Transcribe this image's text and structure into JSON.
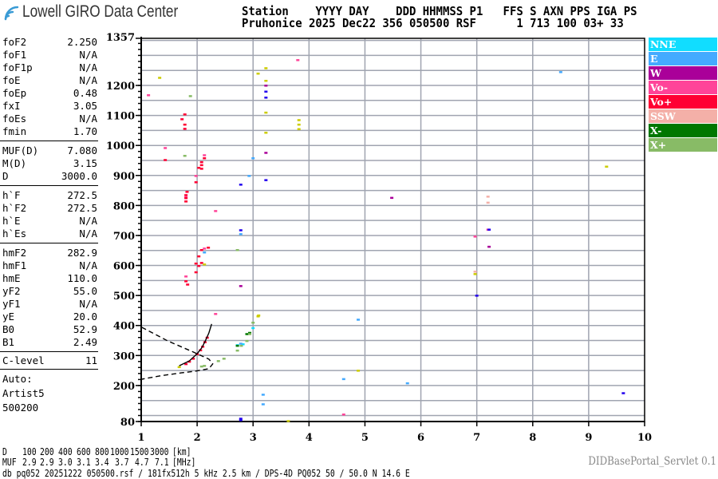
{
  "header": {
    "logo_text": "Lowell GIRO Data Center",
    "line1": "Station    YYYY DAY    DDD HHMMSS P1   FFS S AXN PPS IGA PS",
    "line2": "Pruhonice 2025 Dec22 356 050500 RSF      1 713 100 03+ 33"
  },
  "params": [
    {
      "key": "foF2",
      "value": "2.250"
    },
    {
      "key": "foF1",
      "value": "N/A"
    },
    {
      "key": "foF1p",
      "value": "N/A"
    },
    {
      "key": "foE",
      "value": "N/A"
    },
    {
      "key": "foEp",
      "value": "0.48"
    },
    {
      "key": "fxI",
      "value": "3.05"
    },
    {
      "key": "foEs",
      "value": "N/A"
    },
    {
      "key": "fmin",
      "value": "1.70"
    },
    {
      "key": "MUF(D)",
      "value": "7.080"
    },
    {
      "key": "M(D)",
      "value": "3.15"
    },
    {
      "key": "D",
      "value": "3000.0"
    },
    {
      "key": "h`F",
      "value": "272.5"
    },
    {
      "key": "h`F2",
      "value": "272.5"
    },
    {
      "key": "h`E",
      "value": "N/A"
    },
    {
      "key": "h`Es",
      "value": "N/A"
    },
    {
      "key": "hmF2",
      "value": "282.9"
    },
    {
      "key": "hmF1",
      "value": "N/A"
    },
    {
      "key": "hmE",
      "value": "110.0"
    },
    {
      "key": "yF2",
      "value": "55.0"
    },
    {
      "key": "yF1",
      "value": "N/A"
    },
    {
      "key": "yE",
      "value": "20.0"
    },
    {
      "key": "B0",
      "value": "52.9"
    },
    {
      "key": "B1",
      "value": "2.49"
    },
    {
      "key": "C-level",
      "value": "11"
    }
  ],
  "autoscaling": {
    "line1": "Auto:",
    "line2": "Artist5",
    "line3": "500200"
  },
  "legend": [
    {
      "label": "NNE",
      "color": "#11ddff"
    },
    {
      "label": "E",
      "color": "#44aaff"
    },
    {
      "label": "W",
      "color": "#aa0099"
    },
    {
      "label": "Vo-",
      "color": "#ff4499"
    },
    {
      "label": "Vo+",
      "color": "#ff0033"
    },
    {
      "label": "SSW",
      "color": "#f4b0a8"
    },
    {
      "label": "X-",
      "color": "#007700"
    },
    {
      "label": "X+",
      "color": "#88bb66"
    }
  ],
  "muf_table": {
    "d_label": "D",
    "d_values": [
      "100",
      "200",
      "400",
      "600",
      "800",
      "1000",
      "1500",
      "3000"
    ],
    "d_unit": "[km]",
    "muf_label": "MUF",
    "muf_values": [
      "2.9",
      "2.9",
      "3.0",
      "3.1",
      "3.4",
      "3.7",
      "4.7",
      "7.1"
    ],
    "muf_unit": "[MHz]"
  },
  "footer": "db pq052 20251222 050500.rsf / 181fx512h 5 kHz 2.5 km / DPS-4D PQ052 50 / 50.0 N 14.6 E",
  "servlet": "DIDBasePortal_Servlet 0.1",
  "chart_data": {
    "type": "scatter",
    "xlim": [
      1,
      10
    ],
    "ylim": [
      80,
      1357
    ],
    "x_ticks": [
      "1",
      "2",
      "3",
      "4",
      "5",
      "6",
      "7",
      "8",
      "9",
      "10"
    ],
    "y_ticks": [
      "1357",
      "1200",
      "1100",
      "1000",
      "900",
      "800",
      "700",
      "600",
      "500",
      "400",
      "300",
      "200",
      "80"
    ],
    "grid": true,
    "legend_position": "right",
    "series": [
      {
        "name": "NNE",
        "color": "#11ddff",
        "points": [
          [
            3.0,
            392
          ],
          [
            2.72,
            335
          ],
          [
            2.82,
            338
          ]
        ]
      },
      {
        "name": "E",
        "color": "#44aaff",
        "points": [
          [
            3.0,
            958
          ],
          [
            2.93,
            899
          ],
          [
            2.78,
            705
          ],
          [
            2.13,
            644
          ],
          [
            3.18,
            170
          ],
          [
            3.18,
            138
          ],
          [
            4.88,
            420
          ],
          [
            4.62,
            222
          ],
          [
            5.76,
            208
          ],
          [
            8.5,
            1245
          ],
          [
            2.78,
            340
          ]
        ]
      },
      {
        "name": "W",
        "color": "#aa0099",
        "points": [
          [
            3.23,
            976
          ],
          [
            2.78,
            532
          ],
          [
            5.48,
            826
          ],
          [
            7.22,
            663
          ],
          [
            3.23,
            1200
          ]
        ]
      },
      {
        "name": "Vo-",
        "color": "#ff4499",
        "points": [
          [
            1.43,
            992
          ],
          [
            2.13,
            968
          ],
          [
            1.98,
            899
          ],
          [
            1.8,
            828
          ],
          [
            2.33,
            782
          ],
          [
            2.13,
            657
          ],
          [
            1.8,
            564
          ],
          [
            2.33,
            439
          ],
          [
            1.13,
            1168
          ],
          [
            3.8,
            1285
          ],
          [
            6.97,
            697
          ],
          [
            7.2,
            720
          ],
          [
            4.62,
            104
          ]
        ]
      },
      {
        "name": "Vo+",
        "color": "#ff0033",
        "points": [
          [
            1.78,
            1104
          ],
          [
            1.73,
            1088
          ],
          [
            1.78,
            1070
          ],
          [
            1.78,
            1056
          ],
          [
            1.43,
            952
          ],
          [
            2.13,
            958
          ],
          [
            2.08,
            945
          ],
          [
            2.08,
            935
          ],
          [
            2.03,
            926
          ],
          [
            2.08,
            923
          ],
          [
            1.98,
            878
          ],
          [
            1.82,
            846
          ],
          [
            1.8,
            835
          ],
          [
            1.8,
            825
          ],
          [
            1.8,
            814
          ],
          [
            2.08,
            652
          ],
          [
            2.03,
            631
          ],
          [
            1.98,
            607
          ],
          [
            2.03,
            599
          ],
          [
            1.98,
            578
          ],
          [
            1.8,
            548
          ],
          [
            1.83,
            537
          ],
          [
            2.2,
            660
          ],
          [
            2.08,
            609
          ],
          [
            1.8,
            272
          ],
          [
            1.86,
            280
          ],
          [
            1.93,
            290
          ],
          [
            2.0,
            305
          ],
          [
            2.06,
            318
          ],
          [
            2.1,
            330
          ],
          [
            2.14,
            345
          ],
          [
            2.18,
            360
          ]
        ]
      },
      {
        "name": "SSW",
        "color": "#f4b0a8",
        "points": [
          [
            7.2,
            830
          ],
          [
            7.2,
            810
          ],
          [
            6.97,
            580
          ]
        ]
      },
      {
        "name": "X-",
        "color": "#007700",
        "points": [
          [
            2.89,
            372
          ],
          [
            2.72,
            333
          ],
          [
            2.94,
            376
          ]
        ]
      },
      {
        "name": "X+",
        "color": "#88bb66",
        "points": [
          [
            3.0,
            410
          ],
          [
            2.94,
            372
          ],
          [
            2.89,
            349
          ],
          [
            2.79,
            333
          ],
          [
            2.72,
            317
          ],
          [
            2.48,
            290
          ],
          [
            2.38,
            282
          ],
          [
            1.78,
            966
          ],
          [
            2.72,
            652
          ],
          [
            1.88,
            1165
          ],
          [
            2.13,
            266
          ],
          [
            2.08,
            264
          ]
        ]
      },
      {
        "color": "#2200ee",
        "points": [
          [
            3.23,
            1180
          ],
          [
            3.23,
            1160
          ],
          [
            2.78,
            870
          ],
          [
            3.23,
            885
          ],
          [
            2.78,
            718
          ],
          [
            7.0,
            500
          ],
          [
            2.78,
            90
          ],
          [
            2.78,
            85
          ],
          [
            9.62,
            175
          ],
          [
            7.22,
            720
          ]
        ]
      },
      {
        "color": "#cccc00",
        "points": [
          [
            3.23,
            1258
          ],
          [
            3.09,
            1240
          ],
          [
            3.23,
            1216
          ],
          [
            3.23,
            1110
          ],
          [
            1.33,
            1226
          ],
          [
            3.23,
            1043
          ],
          [
            3.82,
            1085
          ],
          [
            3.82,
            1070
          ],
          [
            3.82,
            1055
          ],
          [
            3.1,
            434
          ],
          [
            4.88,
            250
          ],
          [
            3.63,
            82
          ],
          [
            9.32,
            930
          ],
          [
            6.97,
            572
          ],
          [
            1.68,
            262
          ],
          [
            3.09,
            431
          ],
          [
            2.13,
            604
          ]
        ]
      }
    ],
    "profile_curve": [
      [
        1.01,
        394
      ],
      [
        1.47,
        349
      ],
      [
        1.9,
        314
      ],
      [
        2.21,
        288
      ],
      [
        2.28,
        272
      ],
      [
        2.21,
        256
      ],
      [
        1.97,
        248
      ],
      [
        1.71,
        242
      ],
      [
        1.33,
        232
      ],
      [
        1.01,
        221
      ]
    ],
    "trace_curve": [
      [
        1.68,
        266
      ],
      [
        1.86,
        282
      ],
      [
        2.0,
        306
      ],
      [
        2.08,
        325
      ],
      [
        2.14,
        346
      ],
      [
        2.21,
        375
      ],
      [
        2.26,
        405
      ]
    ]
  }
}
